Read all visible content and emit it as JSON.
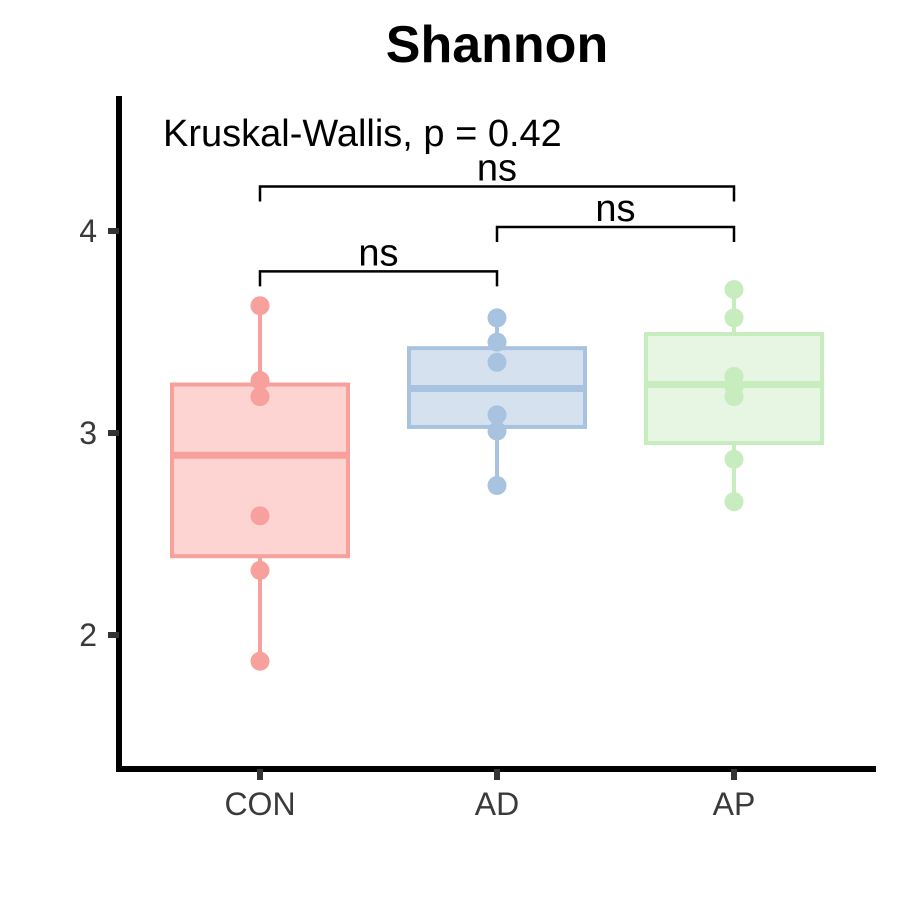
{
  "chart_data": {
    "type": "box",
    "title": "Shannon",
    "xlabel": "",
    "ylabel": "",
    "categories": [
      "CON",
      "AD",
      "AP"
    ],
    "ylim": [
      1.35,
      4.65
    ],
    "yticks": [
      2,
      3,
      4
    ],
    "ytick_labels": [
      "2",
      "3",
      "4"
    ],
    "grid": false,
    "legend": "none",
    "series": [
      {
        "category": "CON",
        "color": "#F8A19C",
        "fill": "#FDD4D2",
        "box": {
          "q1": 2.39,
          "median": 2.89,
          "q3": 3.24,
          "whisker_low": 1.87,
          "whisker_high": 3.63
        },
        "points": [
          3.63,
          3.26,
          3.18,
          2.59,
          2.32,
          1.87
        ]
      },
      {
        "category": "AD",
        "color": "#A8C3E0",
        "fill": "#D5E1EE",
        "box": {
          "q1": 3.03,
          "median": 3.22,
          "q3": 3.42,
          "whisker_low": 2.74,
          "whisker_high": 3.57
        },
        "points": [
          3.57,
          3.45,
          3.35,
          3.09,
          3.01,
          2.74
        ]
      },
      {
        "category": "AP",
        "color": "#C7ECBE",
        "fill": "#E6F6E2",
        "box": {
          "q1": 2.95,
          "median": 3.24,
          "q3": 3.49,
          "whisker_low": 2.66,
          "whisker_high": 3.71
        },
        "points": [
          3.71,
          3.57,
          3.28,
          3.23,
          3.18,
          2.87,
          2.66
        ]
      }
    ],
    "annotations": {
      "global_test": "Kruskal-Wallis, p = 0.42",
      "comparisons": [
        {
          "from": "CON",
          "to": "AD",
          "y": 3.8,
          "label": "ns"
        },
        {
          "from": "AD",
          "to": "AP",
          "y": 4.02,
          "label": "ns"
        },
        {
          "from": "CON",
          "to": "AP",
          "y": 4.22,
          "label": "ns"
        }
      ]
    }
  }
}
